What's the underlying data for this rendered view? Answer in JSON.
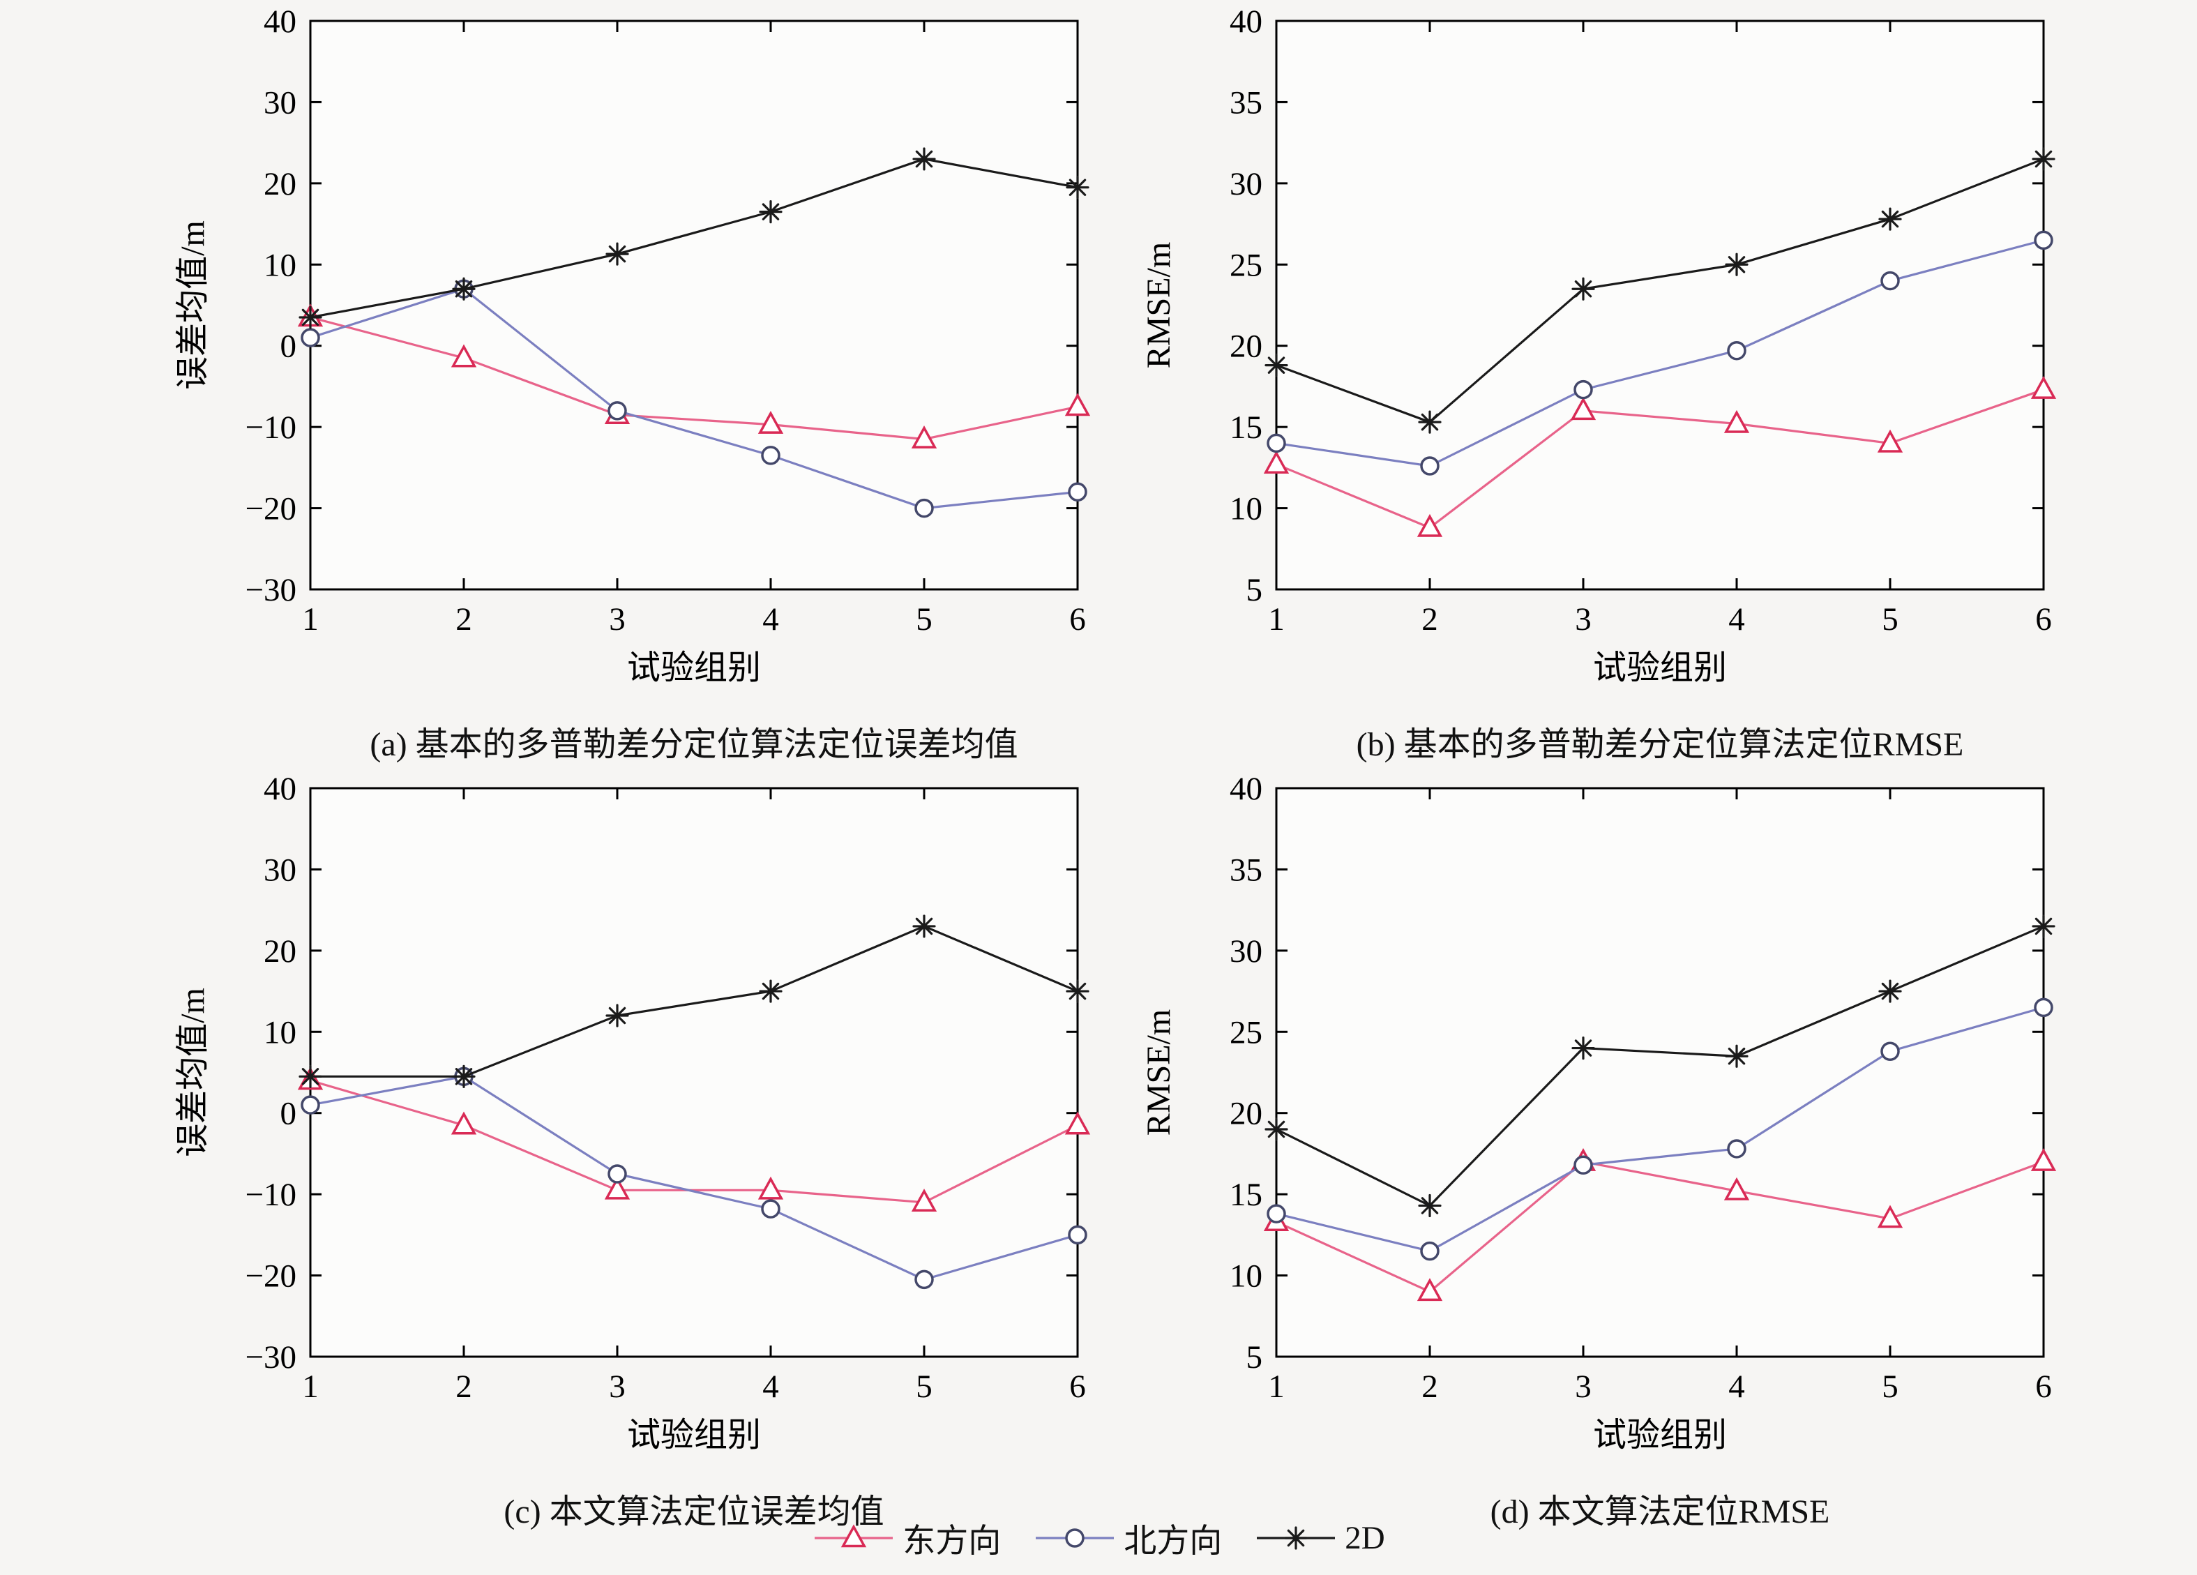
{
  "page": {
    "background": "#f6f5f3",
    "plot_fill": "#fcfcfb",
    "axis_color": "#000000"
  },
  "legend": {
    "position": "bottom-center",
    "items": [
      {
        "label": "东方向",
        "marker": "triangle",
        "marker_color": "#d92a55",
        "line_color": "#e8638a"
      },
      {
        "label": "北方向",
        "marker": "circle",
        "marker_color": "#44486a",
        "line_color": "#7b7fc0"
      },
      {
        "label": "2D",
        "marker": "asterisk",
        "marker_color": "#1a1a1a",
        "line_color": "#1a1a1a"
      }
    ]
  },
  "chart_data": [
    {
      "id": "a",
      "type": "line",
      "title": "(a) 基本的多普勒差分定位算法定位误差均值",
      "xlabel": "试验组别",
      "ylabel": "误差均值/m",
      "x": [
        1,
        2,
        3,
        4,
        5,
        6
      ],
      "xlim": [
        1,
        6
      ],
      "ylim": [
        -30,
        40
      ],
      "ytick_step": 10,
      "grid": false,
      "series": [
        {
          "name": "东方向",
          "values": [
            3.5,
            -1.5,
            -8.5,
            -9.7,
            -11.5,
            -7.5
          ]
        },
        {
          "name": "北方向",
          "values": [
            1.0,
            7.0,
            -8.0,
            -13.5,
            -20.0,
            -18.0
          ]
        },
        {
          "name": "2D",
          "values": [
            3.5,
            7.0,
            11.3,
            16.5,
            23.0,
            19.5
          ]
        }
      ]
    },
    {
      "id": "b",
      "type": "line",
      "title": "(b) 基本的多普勒差分定位算法定位RMSE",
      "xlabel": "试验组别",
      "ylabel": "RMSE/m",
      "x": [
        1,
        2,
        3,
        4,
        5,
        6
      ],
      "xlim": [
        1,
        6
      ],
      "ylim": [
        5,
        40
      ],
      "ytick_step": 5,
      "grid": false,
      "series": [
        {
          "name": "东方向",
          "values": [
            12.7,
            8.8,
            16.0,
            15.2,
            14.0,
            17.3
          ]
        },
        {
          "name": "北方向",
          "values": [
            14.0,
            12.6,
            17.3,
            19.7,
            24.0,
            26.5
          ]
        },
        {
          "name": "2D",
          "values": [
            18.8,
            15.3,
            23.5,
            25.0,
            27.8,
            31.5
          ]
        }
      ]
    },
    {
      "id": "c",
      "type": "line",
      "title": "(c) 本文算法定位误差均值",
      "xlabel": "试验组别",
      "ylabel": "误差均值/m",
      "x": [
        1,
        2,
        3,
        4,
        5,
        6
      ],
      "xlim": [
        1,
        6
      ],
      "ylim": [
        -30,
        40
      ],
      "ytick_step": 10,
      "grid": false,
      "series": [
        {
          "name": "东方向",
          "values": [
            4.0,
            -1.5,
            -9.5,
            -9.5,
            -11.0,
            -1.5
          ]
        },
        {
          "name": "北方向",
          "values": [
            1.0,
            4.5,
            -7.5,
            -11.8,
            -20.5,
            -15.0
          ]
        },
        {
          "name": "2D",
          "values": [
            4.5,
            4.5,
            12.0,
            15.0,
            23.0,
            15.0
          ]
        }
      ]
    },
    {
      "id": "d",
      "type": "line",
      "title": "(d) 本文算法定位RMSE",
      "xlabel": "试验组别",
      "ylabel": "RMSE/m",
      "x": [
        1,
        2,
        3,
        4,
        5,
        6
      ],
      "xlim": [
        1,
        6
      ],
      "ylim": [
        5,
        40
      ],
      "ytick_step": 5,
      "grid": false,
      "series": [
        {
          "name": "东方向",
          "values": [
            13.3,
            9.0,
            17.0,
            15.2,
            13.5,
            17.0
          ]
        },
        {
          "name": "北方向",
          "values": [
            13.8,
            11.5,
            16.8,
            17.8,
            23.8,
            26.5
          ]
        },
        {
          "name": "2D",
          "values": [
            19.0,
            14.3,
            24.0,
            23.5,
            27.5,
            31.5
          ]
        }
      ]
    }
  ]
}
